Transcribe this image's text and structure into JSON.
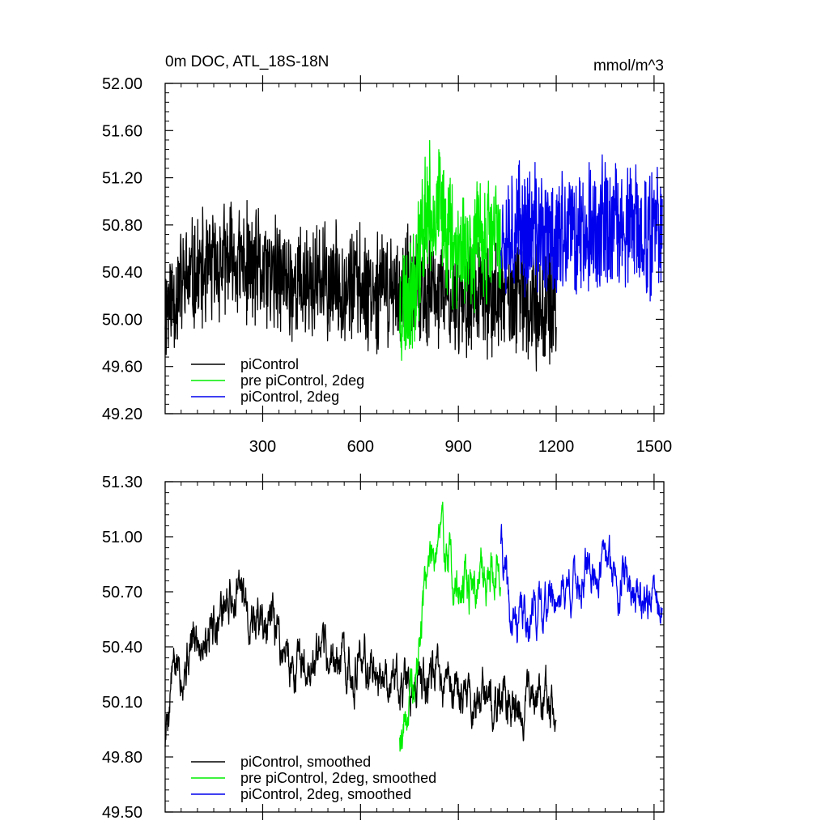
{
  "colors": {
    "piControl": "#000000",
    "pre_piControl_2deg": "#00ee00",
    "piControl_2deg": "#0000ee",
    "axis": "#000000"
  },
  "chart_data": [
    {
      "type": "line",
      "title": "0m DOC, ATL_18S-18N",
      "units": "mmol/m^3",
      "xlabel": "",
      "ylabel": "",
      "xlim": [
        1,
        1530
      ],
      "ylim": [
        49.2,
        52.0
      ],
      "xticks": [
        300,
        600,
        900,
        1200,
        1500
      ],
      "yticks": [
        49.2,
        49.6,
        50.0,
        50.4,
        50.8,
        51.2,
        51.6,
        52.0
      ],
      "ytick_labels": [
        "49.20",
        "49.60",
        "50.00",
        "50.40",
        "50.80",
        "51.20",
        "51.60",
        "52.00"
      ],
      "xtick_labels": [
        "300",
        "600",
        "900",
        "1200",
        "1500"
      ],
      "legend": [
        "piControl",
        "pre piControl, 2deg",
        "piControl, 2deg"
      ],
      "legend_position": "bottom-left",
      "series": [
        {
          "name": "piControl",
          "color_key": "piControl",
          "x_start": 1,
          "x_end": 1200,
          "mean": 50.35,
          "amplitude": 0.45,
          "envelope": [
            [
              1,
              50.1
            ],
            [
              50,
              50.3
            ],
            [
              200,
              50.5
            ],
            [
              400,
              50.3
            ],
            [
              600,
              50.3
            ],
            [
              800,
              50.2
            ],
            [
              1000,
              50.2
            ],
            [
              1200,
              50.1
            ]
          ],
          "seed": 11
        },
        {
          "name": "pre piControl, 2deg",
          "color_key": "pre_piControl_2deg",
          "x_start": 720,
          "x_end": 1030,
          "mean": 50.7,
          "amplitude": 0.5,
          "envelope": [
            [
              720,
              50.1
            ],
            [
              760,
              50.3
            ],
            [
              800,
              50.9
            ],
            [
              850,
              50.9
            ],
            [
              900,
              50.6
            ],
            [
              1030,
              50.7
            ]
          ],
          "seed": 23
        },
        {
          "name": "piControl, 2deg",
          "color_key": "piControl_2deg",
          "x_start": 1030,
          "x_end": 1525,
          "mean": 50.75,
          "amplitude": 0.5,
          "envelope": [
            [
              1030,
              50.8
            ],
            [
              1200,
              50.7
            ],
            [
              1350,
              50.8
            ],
            [
              1525,
              50.7
            ]
          ],
          "seed": 37
        }
      ]
    },
    {
      "type": "line",
      "title": "",
      "xlabel": "",
      "ylabel": "",
      "xlim": [
        1,
        1530
      ],
      "ylim": [
        49.5,
        51.3
      ],
      "xticks": [
        300,
        600,
        900,
        1200,
        1500
      ],
      "yticks": [
        49.5,
        49.8,
        50.1,
        50.4,
        50.7,
        51.0,
        51.3
      ],
      "ytick_labels": [
        "49.50",
        "49.80",
        "50.10",
        "50.40",
        "50.70",
        "51.00",
        "51.30"
      ],
      "legend": [
        "piControl, smoothed",
        "pre piControl, 2deg, smoothed",
        "piControl, 2deg, smoothed"
      ],
      "legend_position": "bottom-left",
      "series": [
        {
          "name": "piControl, smoothed",
          "color_key": "piControl",
          "x_start": 1,
          "x_end": 1200,
          "mean": 50.35,
          "amplitude": 0.22,
          "envelope": [
            [
              1,
              49.9
            ],
            [
              20,
              50.25
            ],
            [
              120,
              50.5
            ],
            [
              220,
              50.7
            ],
            [
              400,
              50.3
            ],
            [
              600,
              50.3
            ],
            [
              800,
              50.2
            ],
            [
              950,
              50.1
            ],
            [
              1200,
              50.1
            ]
          ],
          "seed": 5
        },
        {
          "name": "pre piControl, 2deg, smoothed",
          "color_key": "pre_piControl_2deg",
          "x_start": 720,
          "x_end": 1030,
          "mean": 50.7,
          "amplitude": 0.22,
          "envelope": [
            [
              720,
              49.95
            ],
            [
              770,
              50.2
            ],
            [
              800,
              50.8
            ],
            [
              840,
              51.05
            ],
            [
              900,
              50.7
            ],
            [
              1030,
              50.85
            ]
          ],
          "seed": 19
        },
        {
          "name": "piControl, 2deg, smoothed",
          "color_key": "piControl_2deg",
          "x_start": 1030,
          "x_end": 1525,
          "mean": 50.75,
          "amplitude": 0.2,
          "envelope": [
            [
              1030,
              51.0
            ],
            [
              1060,
              50.5
            ],
            [
              1200,
              50.7
            ],
            [
              1350,
              50.85
            ],
            [
              1525,
              50.6
            ]
          ],
          "seed": 41
        }
      ]
    }
  ]
}
